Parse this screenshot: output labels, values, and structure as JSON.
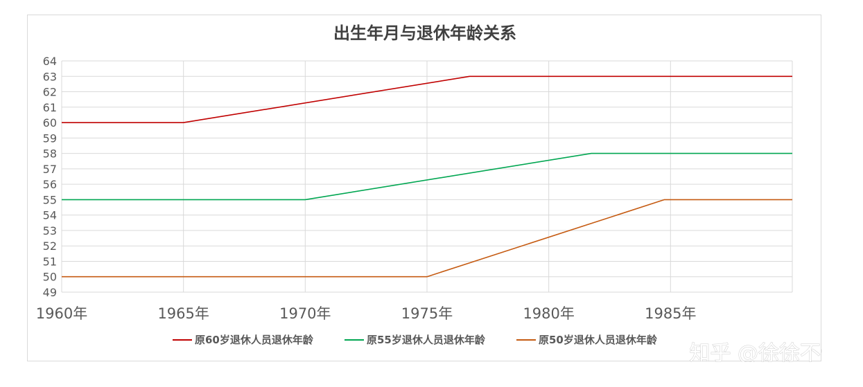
{
  "chart_data": {
    "type": "line",
    "title": "出生年月与退休年龄关系",
    "xlabel": "",
    "ylabel": "",
    "ylim": [
      49,
      64
    ],
    "xlim": [
      1960,
      1990
    ],
    "y_ticks": [
      "49",
      "50",
      "51",
      "52",
      "53",
      "54",
      "55",
      "56",
      "57",
      "58",
      "59",
      "60",
      "61",
      "62",
      "63",
      "64"
    ],
    "x_ticks": [
      {
        "x": 1960,
        "label": "1960年"
      },
      {
        "x": 1965,
        "label": "1965年"
      },
      {
        "x": 1970,
        "label": "1970年"
      },
      {
        "x": 1975,
        "label": "1975年"
      },
      {
        "x": 1980,
        "label": "1980年"
      },
      {
        "x": 1985,
        "label": "1985年"
      }
    ],
    "grid": true,
    "legend_position": "bottom",
    "series": [
      {
        "name": "原60岁退休人员退休年龄",
        "color": "#c00000",
        "points": [
          [
            1960,
            60
          ],
          [
            1965,
            60
          ],
          [
            1976.75,
            63
          ],
          [
            1990,
            63
          ]
        ]
      },
      {
        "name": "原55岁退休人员退休年龄",
        "color": "#00a651",
        "points": [
          [
            1960,
            55
          ],
          [
            1970,
            55
          ],
          [
            1981.75,
            58
          ],
          [
            1990,
            58
          ]
        ]
      },
      {
        "name": "原50岁退休人员退休年龄",
        "color": "#c55a11",
        "points": [
          [
            1960,
            50
          ],
          [
            1975,
            50
          ],
          [
            1984.75,
            55
          ],
          [
            1990,
            55
          ]
        ]
      }
    ]
  },
  "watermark": "知乎 @徐徐不倦"
}
